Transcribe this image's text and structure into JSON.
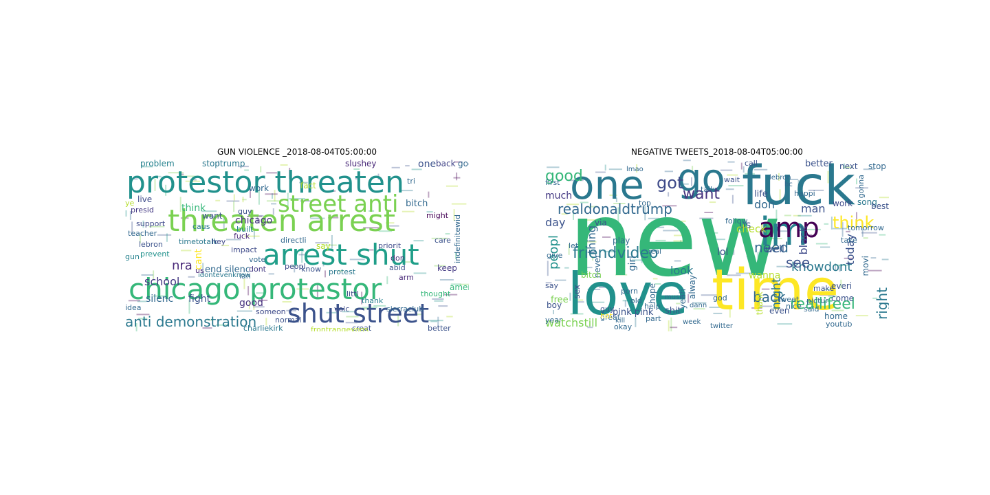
{
  "figure": {
    "titles": [
      "GUN VIOLENCE _2018-08-04T05:00:00",
      "NEGATIVE TWEETS_2018-08-04T05:00:00"
    ]
  },
  "clouds": [
    {
      "name": "gun-violence",
      "words": [
        {
          "text": "protestor threaten",
          "color": "#21918c"
        },
        {
          "text": "threaten arrest",
          "color": "#7ad151"
        },
        {
          "text": "street anti",
          "color": "#7ad151"
        },
        {
          "text": "arrest shut",
          "color": "#1f9e89"
        },
        {
          "text": "chicago protestor",
          "color": "#35b779"
        },
        {
          "text": "shut street",
          "color": "#3b528b"
        },
        {
          "text": "anti demonstration",
          "color": "#2a788e"
        },
        {
          "text": "nra",
          "color": "#482878"
        },
        {
          "text": "school",
          "color": "#443983"
        },
        {
          "text": "stoptrump",
          "color": "#2a788e"
        },
        {
          "text": "one",
          "color": "#3b528b"
        },
        {
          "text": "work",
          "color": "#31688e"
        },
        {
          "text": "fact",
          "color": "#b5de2b"
        },
        {
          "text": "back",
          "color": "#414487"
        },
        {
          "text": "god",
          "color": "#31688e"
        },
        {
          "text": "problem",
          "color": "#26828e"
        },
        {
          "text": "live",
          "color": "#3e4a89"
        },
        {
          "text": "think",
          "color": "#35b779"
        },
        {
          "text": "want",
          "color": "#3b528b"
        },
        {
          "text": "chicago",
          "color": "#46327e"
        },
        {
          "text": "caus",
          "color": "#2a788e"
        },
        {
          "text": "bitch",
          "color": "#31688e"
        },
        {
          "text": "slushey",
          "color": "#482878"
        },
        {
          "text": "presid",
          "color": "#443983"
        },
        {
          "text": "built",
          "color": "#26828e"
        },
        {
          "text": "support",
          "color": "#3e4a89"
        },
        {
          "text": "teacher",
          "color": "#31688e"
        },
        {
          "text": "timetotalk",
          "color": "#2a788e"
        },
        {
          "text": "fuck",
          "color": "#482878"
        },
        {
          "text": "directli",
          "color": "#31688e"
        },
        {
          "text": "priorit",
          "color": "#3e4a89"
        },
        {
          "text": "might",
          "color": "#440154"
        },
        {
          "text": "care",
          "color": "#3b528b"
        },
        {
          "text": "lebron",
          "color": "#3b528b"
        },
        {
          "text": "hey",
          "color": "#3e4a89"
        },
        {
          "text": "prevent",
          "color": "#21918c"
        },
        {
          "text": "impact",
          "color": "#3e4a89"
        },
        {
          "text": "vote",
          "color": "#31688e"
        },
        {
          "text": "gun",
          "color": "#26828e"
        },
        {
          "text": "cant",
          "color": "#fde725"
        },
        {
          "text": "dont",
          "color": "#443983"
        },
        {
          "text": "say",
          "color": "#b5de2b"
        },
        {
          "text": "don",
          "color": "#472d7b"
        },
        {
          "text": "peopl",
          "color": "#3e4a89"
        },
        {
          "text": "end silenc",
          "color": "#31688e"
        },
        {
          "text": "know",
          "color": "#3b528b"
        },
        {
          "text": "protest",
          "color": "#2a788e"
        },
        {
          "text": "abid",
          "color": "#3b528b"
        },
        {
          "text": "arm",
          "color": "#482878"
        },
        {
          "text": "keep",
          "color": "#443983"
        },
        {
          "text": "idontevenknow",
          "color": "#2a788e"
        },
        {
          "text": "silenc",
          "color": "#31688e"
        },
        {
          "text": "fight",
          "color": "#3b528b"
        },
        {
          "text": "littl",
          "color": "#3e4a89"
        },
        {
          "text": "thank",
          "color": "#26828e"
        },
        {
          "text": "good",
          "color": "#46327e"
        },
        {
          "text": "thought",
          "color": "#35b779"
        },
        {
          "text": "idea",
          "color": "#31688e"
        },
        {
          "text": "voic",
          "color": "#3e4a89"
        },
        {
          "text": "sierraclub",
          "color": "#31688e"
        },
        {
          "text": "america",
          "color": "#35b779"
        },
        {
          "text": "creat",
          "color": "#3b528b"
        },
        {
          "text": "charliekirk",
          "color": "#2a788e"
        },
        {
          "text": "frontrangeyogs",
          "color": "#b5de2b"
        },
        {
          "text": "better",
          "color": "#3b528b"
        },
        {
          "text": "indefinitewid",
          "color": "#31688e"
        },
        {
          "text": "someon",
          "color": "#3e4a89"
        },
        {
          "text": "normal",
          "color": "#3b528b"
        },
        {
          "text": "tri",
          "color": "#31688e"
        },
        {
          "text": "us",
          "color": "#482878"
        },
        {
          "text": "guy",
          "color": "#3b528b"
        },
        {
          "text": "ye",
          "color": "#b5de2b"
        },
        {
          "text": "ian",
          "color": "#31688e"
        }
      ]
    },
    {
      "name": "negative-tweets",
      "words": [
        {
          "text": "new",
          "color": "#35b779"
        },
        {
          "text": "fuck",
          "color": "#2a788e"
        },
        {
          "text": "go",
          "color": "#2a788e"
        },
        {
          "text": "one",
          "color": "#2a788e"
        },
        {
          "text": "love",
          "color": "#21918c"
        },
        {
          "text": "time",
          "color": "#fde725"
        },
        {
          "text": "im",
          "color": "#26828e"
        },
        {
          "text": "amp",
          "color": "#440154"
        },
        {
          "text": "realdonaldtrump",
          "color": "#31688e"
        },
        {
          "text": "good",
          "color": "#35b779"
        },
        {
          "text": "got",
          "color": "#3e4a89"
        },
        {
          "text": "want",
          "color": "#46327e"
        },
        {
          "text": "day",
          "color": "#3b528b"
        },
        {
          "text": "think",
          "color": "#fde725"
        },
        {
          "text": "need",
          "color": "#31688e"
        },
        {
          "text": "don",
          "color": "#31688e"
        },
        {
          "text": "man",
          "color": "#3b528b"
        },
        {
          "text": "knowdont",
          "color": "#2a788e"
        },
        {
          "text": "friendvideo",
          "color": "#2a788e"
        },
        {
          "text": "look",
          "color": "#2a788e"
        },
        {
          "text": "back",
          "color": "#31688e"
        },
        {
          "text": "reallifeel",
          "color": "#35b779"
        },
        {
          "text": "watchstill",
          "color": "#7ad151"
        },
        {
          "text": "see",
          "color": "#3b528b"
        },
        {
          "text": "peopl",
          "color": "#21918c"
        },
        {
          "text": "thing",
          "color": "#31688e"
        },
        {
          "text": "black",
          "color": "#3e4a89"
        },
        {
          "text": "right",
          "color": "#2a788e"
        },
        {
          "text": "night",
          "color": "#2a788e"
        },
        {
          "text": "much",
          "color": "#443983"
        },
        {
          "text": "first",
          "color": "#31688e"
        },
        {
          "text": "call",
          "color": "#3b528b"
        },
        {
          "text": "better",
          "color": "#3b528b"
        },
        {
          "text": "next",
          "color": "#3b528b"
        },
        {
          "text": "stop",
          "color": "#31688e"
        },
        {
          "text": "song",
          "color": "#2a788e"
        },
        {
          "text": "work",
          "color": "#3e4a89"
        },
        {
          "text": "best",
          "color": "#3b528b"
        },
        {
          "text": "life",
          "color": "#3b528b"
        },
        {
          "text": "wait",
          "color": "#3b528b"
        },
        {
          "text": "us",
          "color": "#3b528b"
        },
        {
          "text": "via",
          "color": "#3b528b"
        },
        {
          "text": "play",
          "color": "#31688e"
        },
        {
          "text": "follow",
          "color": "#31688e"
        },
        {
          "text": "check",
          "color": "#b5de2b"
        },
        {
          "text": "well",
          "color": "#3b528b"
        },
        {
          "text": "lol",
          "color": "#3b528b"
        },
        {
          "text": "girl",
          "color": "#31688e"
        },
        {
          "text": "wanna",
          "color": "#b5de2b"
        },
        {
          "text": "make",
          "color": "#3b528b"
        },
        {
          "text": "today",
          "color": "#3b528b"
        },
        {
          "text": "everi",
          "color": "#3b528b"
        },
        {
          "text": "thank",
          "color": "#b5de2b"
        },
        {
          "text": "come",
          "color": "#3b528b"
        },
        {
          "text": "pink pink",
          "color": "#3b528b"
        },
        {
          "text": "shit",
          "color": "#3b528b"
        },
        {
          "text": "even",
          "color": "#3b528b"
        },
        {
          "text": "free",
          "color": "#7ad151"
        },
        {
          "text": "say",
          "color": "#3b528b"
        },
        {
          "text": "boy",
          "color": "#3b528b"
        },
        {
          "text": "sex",
          "color": "#3b528b"
        },
        {
          "text": "guy",
          "color": "#3b528b"
        },
        {
          "text": "never",
          "color": "#31688e"
        },
        {
          "text": "alway",
          "color": "#31688e"
        },
        {
          "text": "porn",
          "color": "#31688e"
        },
        {
          "text": "hope",
          "color": "#31688e"
        },
        {
          "text": "music",
          "color": "#31688e"
        },
        {
          "text": "yeah",
          "color": "#31688e"
        },
        {
          "text": "god",
          "color": "#31688e"
        },
        {
          "text": "home",
          "color": "#31688e"
        },
        {
          "text": "movi",
          "color": "#31688e"
        },
        {
          "text": "tweet",
          "color": "#31688e"
        },
        {
          "text": "gonna",
          "color": "#31688e"
        },
        {
          "text": "happi",
          "color": "#31688e"
        },
        {
          "text": "year",
          "color": "#31688e"
        },
        {
          "text": "great",
          "color": "#31688e"
        },
        {
          "text": "help",
          "color": "#31688e"
        },
        {
          "text": "hot",
          "color": "#fde725"
        },
        {
          "text": "bitch",
          "color": "#7ad151"
        },
        {
          "text": "top",
          "color": "#31688e"
        },
        {
          "text": "part",
          "color": "#31688e"
        },
        {
          "text": "twitter",
          "color": "#31688e"
        },
        {
          "text": "pictur",
          "color": "#31688e"
        },
        {
          "text": "said",
          "color": "#31688e"
        },
        {
          "text": "old",
          "color": "#31688e"
        },
        {
          "text": "okay",
          "color": "#31688e"
        },
        {
          "text": "kill",
          "color": "#31688e"
        },
        {
          "text": "week",
          "color": "#31688e"
        },
        {
          "text": "nice",
          "color": "#31688e"
        },
        {
          "text": "dann",
          "color": "#31688e"
        },
        {
          "text": "lebron",
          "color": "#31688e"
        },
        {
          "text": "bc",
          "color": "#31688e"
        },
        {
          "text": "lmao",
          "color": "#31688e"
        },
        {
          "text": "give",
          "color": "#31688e"
        },
        {
          "text": "let",
          "color": "#31688e"
        },
        {
          "text": "youtub",
          "color": "#31688e"
        },
        {
          "text": "tomorrow",
          "color": "#31688e"
        },
        {
          "text": "take",
          "color": "#31688e"
        },
        {
          "text": "talk",
          "color": "#31688e"
        },
        {
          "text": "real",
          "color": "#31688e"
        },
        {
          "text": "happen",
          "color": "#31688e"
        }
      ]
    }
  ]
}
